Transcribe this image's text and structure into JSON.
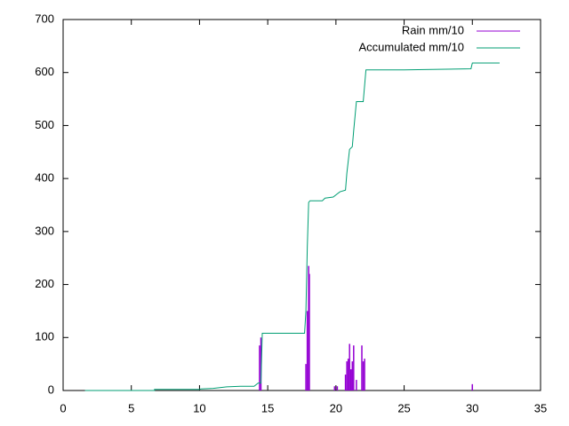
{
  "chart_data": {
    "type": "impulse-line",
    "series": [
      {
        "name": "Rain mm/10",
        "color": "#9400d3",
        "style": "impulses",
        "x": [
          14.4,
          14.5,
          17.8,
          17.9,
          18.0,
          18.05,
          19.9,
          20.1,
          20.7,
          20.8,
          20.9,
          21.0,
          21.1,
          21.2,
          21.3,
          21.5,
          21.9,
          22.0,
          22.1,
          30.0
        ],
        "values": [
          85,
          100,
          50,
          150,
          235,
          220,
          8,
          8,
          30,
          55,
          60,
          88,
          40,
          55,
          85,
          20,
          85,
          55,
          60,
          12
        ]
      },
      {
        "name": "Accumulated mm/10",
        "color": "#009e73",
        "style": "line",
        "x": [
          1.6,
          6.7,
          6.7,
          10.0,
          10.1,
          11.0,
          12.0,
          13.0,
          14.0,
          14.3,
          14.5,
          14.6,
          17.7,
          17.8,
          17.9,
          18.0,
          18.1,
          19.0,
          19.2,
          19.8,
          20.3,
          20.7,
          20.8,
          21.0,
          21.2,
          21.3,
          21.5,
          22.0,
          22.2,
          25.0,
          29.9,
          30.0,
          32.0
        ],
        "values": [
          0,
          0,
          2,
          2,
          3,
          4,
          7,
          8,
          8,
          14,
          14,
          108,
          108,
          150,
          270,
          355,
          358,
          358,
          363,
          365,
          375,
          378,
          410,
          455,
          460,
          490,
          545,
          545,
          605,
          605,
          607,
          618,
          618
        ]
      }
    ],
    "xlim": [
      0,
      35
    ],
    "xticks": [
      0,
      5,
      10,
      15,
      20,
      25,
      30,
      35
    ],
    "ylim": [
      0,
      700
    ],
    "yticks": [
      0,
      100,
      200,
      300,
      400,
      500,
      600,
      700
    ],
    "legend": "top-right"
  }
}
